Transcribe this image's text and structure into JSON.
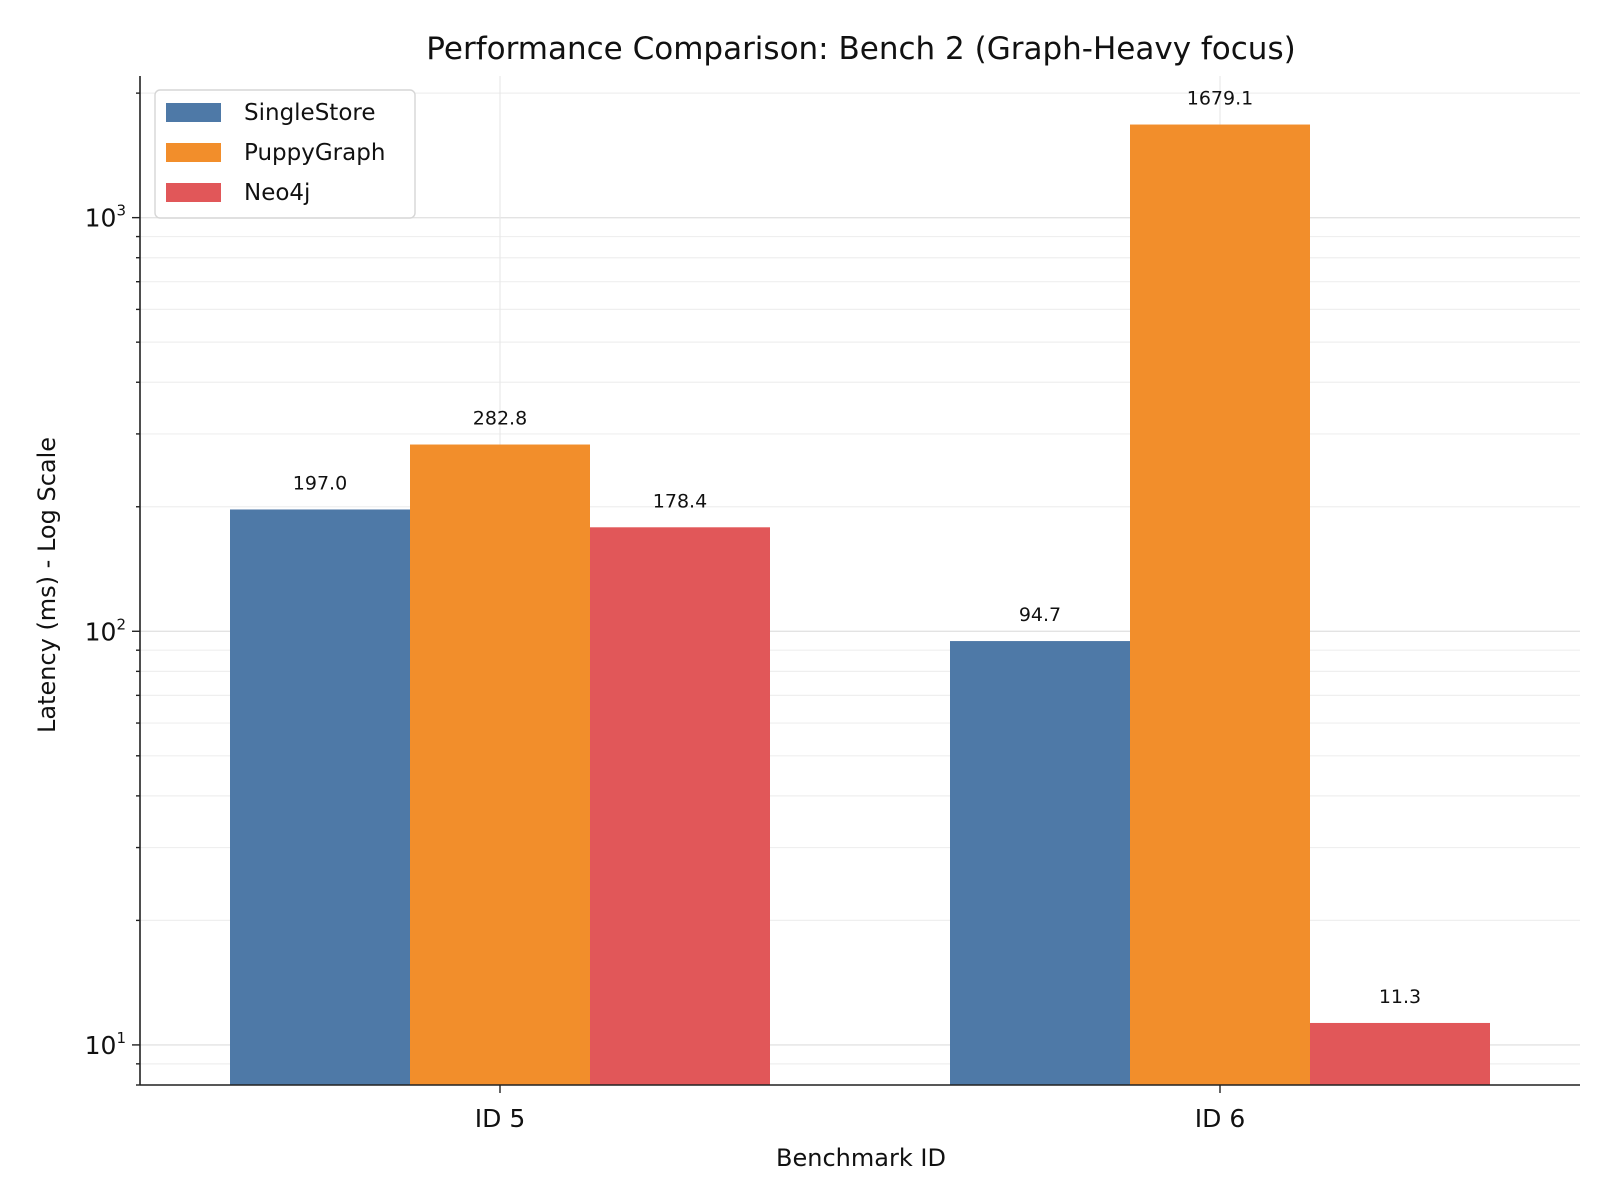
{
  "chart_data": {
    "type": "bar",
    "title": "Performance Comparison: Bench 2 (Graph-Heavy focus)",
    "xlabel": "Benchmark ID",
    "ylabel": "Latency (ms) - Log Scale",
    "yscale": "log",
    "ylim": [
      8,
      2200
    ],
    "grid": true,
    "legend_position": "top-left",
    "categories": [
      "ID 5",
      "ID 6"
    ],
    "series": [
      {
        "name": "SingleStore",
        "color": "#4e79a7",
        "values": [
          197.0,
          94.7
        ],
        "labels": [
          "197.0",
          "94.7"
        ]
      },
      {
        "name": "PuppyGraph",
        "color": "#f28e2b",
        "values": [
          282.8,
          1679.1
        ],
        "labels": [
          "282.8",
          "1679.1"
        ]
      },
      {
        "name": "Neo4j",
        "color": "#e15759",
        "values": [
          178.4,
          11.3
        ],
        "labels": [
          "178.4",
          "11.3"
        ]
      }
    ],
    "yticks": [
      {
        "base": "10",
        "exp": "1",
        "value": 10
      },
      {
        "base": "10",
        "exp": "2",
        "value": 100
      },
      {
        "base": "10",
        "exp": "3",
        "value": 1000
      }
    ]
  }
}
